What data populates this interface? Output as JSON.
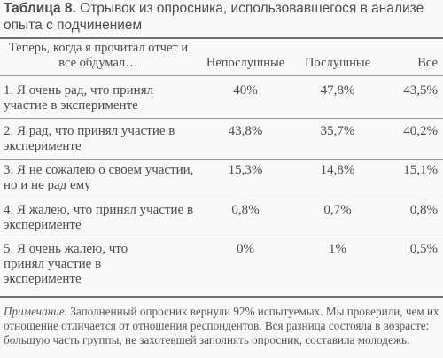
{
  "caption": {
    "label": "Таблица 8.",
    "text": "Отрывок из опросника, использовавшегося в анализе опыта с подчинением"
  },
  "table": {
    "headers": {
      "question": "Теперь, когда я прочитал отчет и все обдумал…",
      "disobedient": "Непослушные",
      "obedient": "Послушные",
      "all": "Все"
    },
    "rows": [
      {
        "q": "1. Я очень рад, что принял участие в эксперименте",
        "disob": "40%",
        "obed": "47,8%",
        "all": "43,5%"
      },
      {
        "q": "2. Я рад, что принял участие в эксперименте",
        "disob": "43,8%",
        "obed": "35,7%",
        "all": "40,2%"
      },
      {
        "q": "3. Я не сожалею о своем участии, но и не рад ему",
        "disob": "15,3%",
        "obed": "14,8%",
        "all": "15,1%"
      },
      {
        "q": "4. Я жалею, что принял участие в эксперименте",
        "disob": "0,8%",
        "obed": "0,7%",
        "all": "0,8%"
      },
      {
        "q": "5. Я очень жалею, что принял участие в эксперименте",
        "disob": "0%",
        "obed": "1%",
        "all": "0,5%"
      }
    ]
  },
  "note": {
    "label": "Примечание.",
    "text": "Заполненный опросник вернули 92% испытуемых. Мы проверили, чем их отношение отличается от отношения респондентов. Вся разница состояла в возрасте: большую часть группы, не захотевшей заполнять опросник, составила молодежь."
  }
}
